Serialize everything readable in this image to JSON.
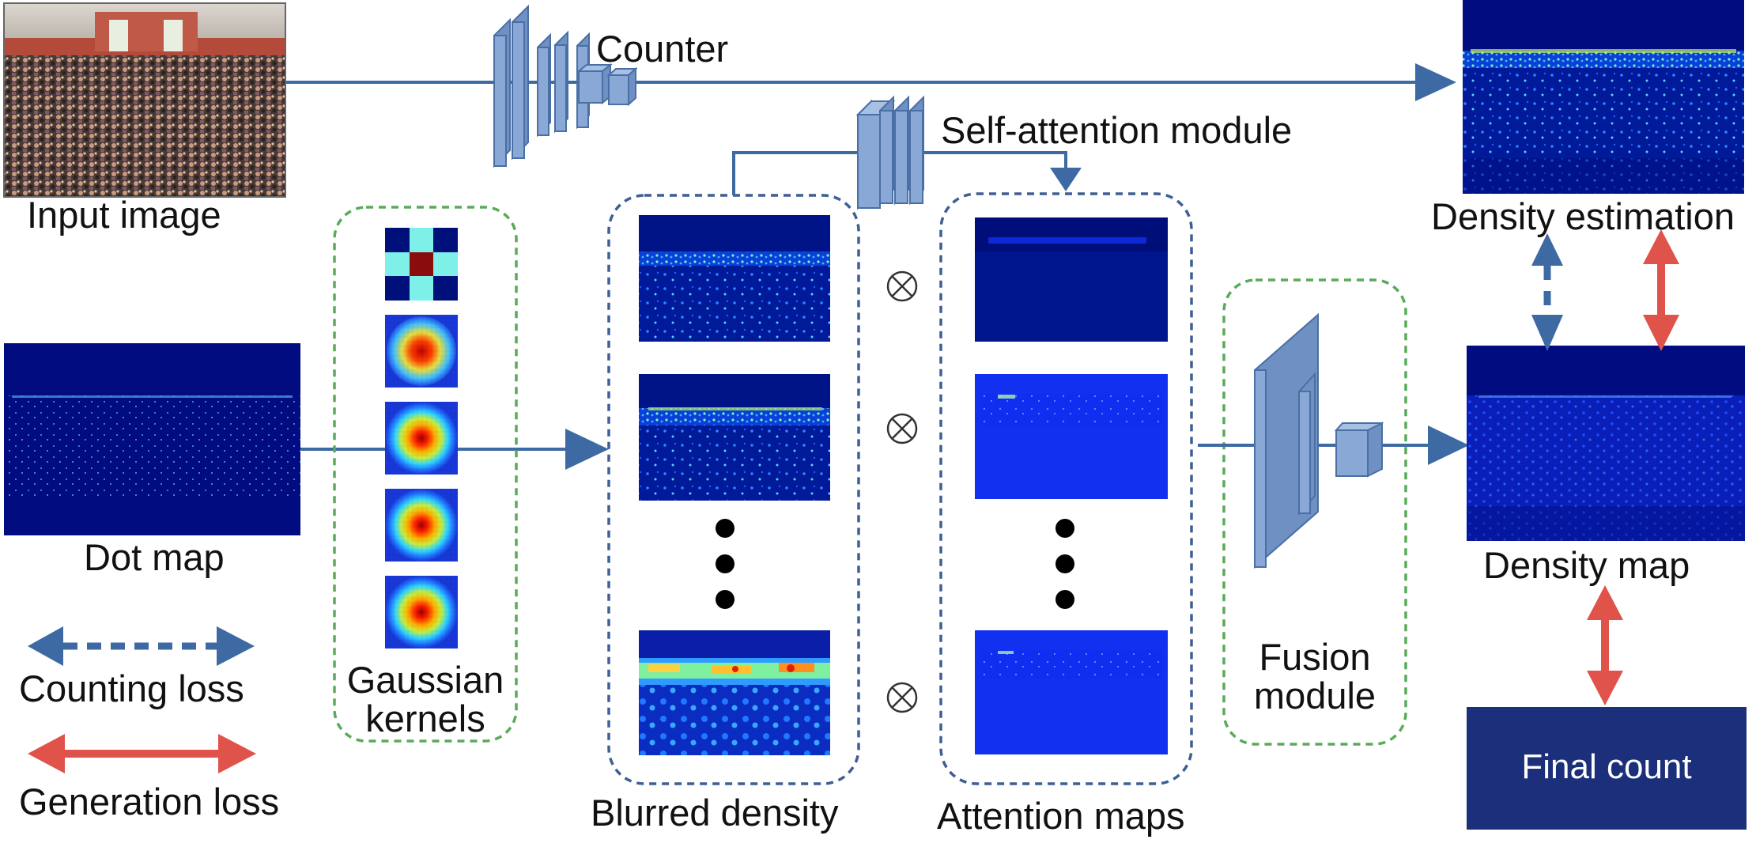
{
  "labels": {
    "input_image": "Input image",
    "counter": "Counter",
    "self_attention": "Self-attention module",
    "density_estimation": "Density estimation",
    "dot_map": "Dot map",
    "gaussian_line1": "Gaussian",
    "gaussian_line2": "kernels",
    "blurred_density": "Blurred density",
    "attention_maps": "Attention maps",
    "fusion_line1": "Fusion",
    "fusion_line2": "module",
    "density_map": "Density map",
    "final_count": "Final count",
    "counting_loss": "Counting loss",
    "generation_loss": "Generation loss",
    "multiply_symbol": "⊗"
  },
  "colors": {
    "arrow_blue": "#3d6aa3",
    "loss_red": "#e0534a",
    "box_green": "#5aaa5a",
    "box_blue": "#3d5f93",
    "layer_face": "#7f9fce",
    "layer_edge": "#4a6fa5",
    "map_dark": "#000c80",
    "final_count_bg": "#1b2f7a"
  }
}
